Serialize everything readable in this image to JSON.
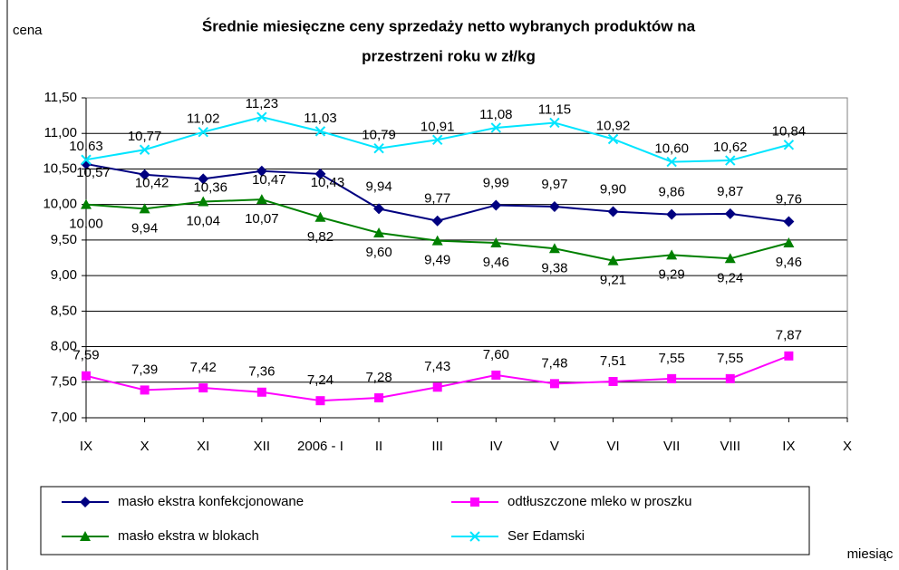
{
  "chart_data": {
    "type": "line",
    "title": [
      "Średnie miesięczne ceny sprzedaży netto  wybranych produktów na",
      "przestrzeni roku w zł/kg"
    ],
    "y_label": "cena",
    "x_label": "miesiąc",
    "categories": [
      "IX",
      "X",
      "XI",
      "XII",
      "2006 - I",
      "II",
      "III",
      "IV",
      "V",
      "VI",
      "VII",
      "VIII",
      "IX",
      "X"
    ],
    "ylim": [
      7,
      11.5
    ],
    "yticks": [
      {
        "value": 7,
        "label": "7,00"
      },
      {
        "value": 7.5,
        "label": "7,50"
      },
      {
        "value": 8,
        "label": "8,00"
      },
      {
        "value": 8.5,
        "label": "8,50"
      },
      {
        "value": 9,
        "label": "9,00"
      },
      {
        "value": 9.5,
        "label": "9,50"
      },
      {
        "value": 10,
        "label": "10,00"
      },
      {
        "value": 10.5,
        "label": "10,50"
      },
      {
        "value": 11,
        "label": "11,00"
      },
      {
        "value": 11.5,
        "label": "11,50"
      }
    ],
    "grid": true,
    "series": [
      {
        "name": "masło ekstra konfekcjonowane",
        "color": "#000080",
        "marker": "diamond",
        "values": [
          10.57,
          10.42,
          10.36,
          10.47,
          10.43,
          9.94,
          9.77,
          9.99,
          9.97,
          9.9,
          9.86,
          9.87,
          9.76,
          null
        ],
        "value_labels": [
          "10,57",
          "10,42",
          "10,36",
          "10,47",
          "10,43",
          "9,94",
          "9,77",
          "9,99",
          "9,97",
          "9,90",
          "9,86",
          "9,87",
          "9,76",
          null
        ]
      },
      {
        "name": "odtłuszczone mleko w proszku",
        "color": "#ff00ff",
        "marker": "square",
        "values": [
          7.59,
          7.39,
          7.42,
          7.36,
          7.24,
          7.28,
          7.43,
          7.6,
          7.48,
          7.51,
          7.55,
          7.55,
          7.87,
          null
        ],
        "value_labels": [
          "7,59",
          "7,39",
          "7,42",
          "7,36",
          "7,24",
          "7,28",
          "7,43",
          "7,60",
          "7,48",
          "7,51",
          "7,55",
          "7,55",
          "7,87",
          null
        ]
      },
      {
        "name": "masło ekstra w blokach",
        "color": "#008000",
        "marker": "triangle",
        "values": [
          10.0,
          9.94,
          10.04,
          10.07,
          9.82,
          9.6,
          9.49,
          9.46,
          9.38,
          9.21,
          9.29,
          9.24,
          9.46,
          null
        ],
        "value_labels": [
          "10,00",
          "9,94",
          "10,04",
          "10,07",
          "9,82",
          "9,60",
          "9,49",
          "9,46",
          "9,38",
          "9,21",
          "9,29",
          "9,24",
          "9,46",
          null
        ]
      },
      {
        "name": "Ser Edamski",
        "color": "#00e5ff",
        "marker": "x",
        "values": [
          10.63,
          10.77,
          11.02,
          11.23,
          11.03,
          10.79,
          10.91,
          11.08,
          11.15,
          10.92,
          10.6,
          10.62,
          10.84,
          null
        ],
        "value_labels": [
          "10,63",
          "10,77",
          "11,02",
          "11,23",
          "11,03",
          "10,79",
          "10,91",
          "11,08",
          "11,15",
          "10,92",
          "10,60",
          "10,62",
          "10,84",
          null
        ]
      }
    ]
  }
}
